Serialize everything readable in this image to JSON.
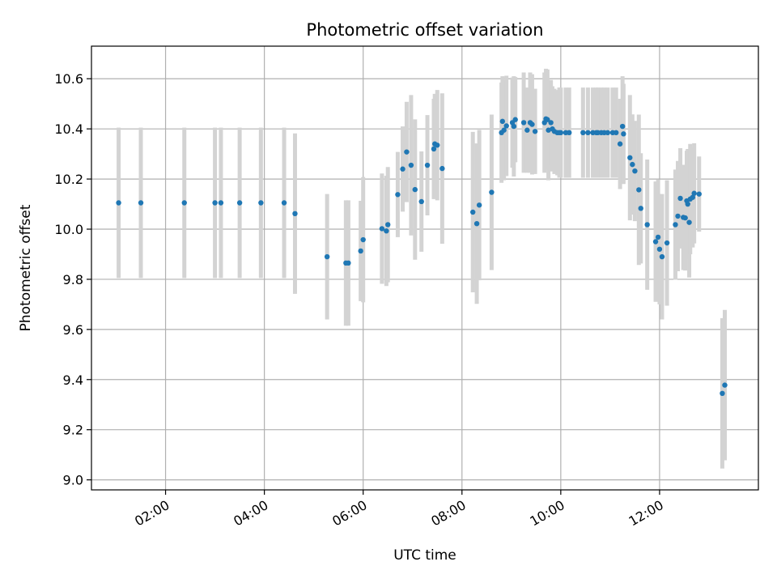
{
  "chart_data": {
    "type": "scatter",
    "title": "Photometric offset variation",
    "xlabel": "UTC time",
    "ylabel": "Photometric offset",
    "x_unit": "hours UTC",
    "xlim": [
      0.5,
      14.0
    ],
    "ylim": [
      8.96,
      10.73
    ],
    "x_ticks": [
      2,
      4,
      6,
      8,
      10,
      12
    ],
    "x_tick_labels": [
      "02:00",
      "04:00",
      "06:00",
      "08:00",
      "10:00",
      "12:00"
    ],
    "y_ticks": [
      9.0,
      9.2,
      9.4,
      9.6,
      9.8,
      10.0,
      10.2,
      10.4,
      10.6
    ],
    "y_tick_labels": [
      "9.0",
      "9.2",
      "9.4",
      "9.6",
      "9.8",
      "10.0",
      "10.2",
      "10.4",
      "10.6"
    ],
    "grid": true,
    "colors": {
      "points": "#1f77b4",
      "errorbars": "#d3d3d3",
      "grid": "#b0b0b0"
    },
    "points": [
      [
        1.05,
        10.105,
        0.3
      ],
      [
        1.5,
        10.105,
        0.3
      ],
      [
        2.38,
        10.105,
        0.3
      ],
      [
        3.0,
        10.105,
        0.3
      ],
      [
        3.12,
        10.105,
        0.3
      ],
      [
        3.5,
        10.105,
        0.3
      ],
      [
        3.93,
        10.105,
        0.3
      ],
      [
        4.4,
        10.105,
        0.3
      ],
      [
        4.62,
        10.062,
        0.32
      ],
      [
        5.27,
        9.89,
        0.25
      ],
      [
        5.65,
        9.865,
        0.25
      ],
      [
        5.7,
        9.865,
        0.25
      ],
      [
        5.95,
        9.913,
        0.2
      ],
      [
        6.0,
        9.958,
        0.25
      ],
      [
        6.38,
        10.002,
        0.22
      ],
      [
        6.47,
        9.993,
        0.22
      ],
      [
        6.5,
        10.018,
        0.23
      ],
      [
        6.7,
        10.138,
        0.17
      ],
      [
        6.8,
        10.24,
        0.17
      ],
      [
        6.88,
        10.308,
        0.2
      ],
      [
        6.97,
        10.255,
        0.28
      ],
      [
        7.05,
        10.158,
        0.28
      ],
      [
        7.18,
        10.11,
        0.2
      ],
      [
        7.3,
        10.255,
        0.2
      ],
      [
        7.43,
        10.32,
        0.2
      ],
      [
        7.45,
        10.34,
        0.2
      ],
      [
        7.5,
        10.335,
        0.22
      ],
      [
        7.6,
        10.242,
        0.3
      ],
      [
        8.22,
        10.068,
        0.32
      ],
      [
        8.3,
        10.022,
        0.32
      ],
      [
        8.35,
        10.096,
        0.3
      ],
      [
        8.6,
        10.147,
        0.31
      ],
      [
        8.8,
        10.385,
        0.2
      ],
      [
        8.82,
        10.43,
        0.18
      ],
      [
        8.85,
        10.395,
        0.2
      ],
      [
        8.9,
        10.412,
        0.2
      ],
      [
        9.02,
        10.425,
        0.18
      ],
      [
        9.05,
        10.41,
        0.2
      ],
      [
        9.08,
        10.437,
        0.17
      ],
      [
        9.25,
        10.425,
        0.2
      ],
      [
        9.32,
        10.395,
        0.17
      ],
      [
        9.38,
        10.425,
        0.2
      ],
      [
        9.42,
        10.418,
        0.2
      ],
      [
        9.48,
        10.39,
        0.17
      ],
      [
        9.67,
        10.425,
        0.2
      ],
      [
        9.7,
        10.44,
        0.2
      ],
      [
        9.73,
        10.437,
        0.2
      ],
      [
        9.75,
        10.395,
        0.2
      ],
      [
        9.8,
        10.425,
        0.17
      ],
      [
        9.83,
        10.4,
        0.17
      ],
      [
        9.87,
        10.39,
        0.17
      ],
      [
        9.93,
        10.385,
        0.17
      ],
      [
        9.97,
        10.385,
        0.18
      ],
      [
        10.0,
        10.385,
        0.18
      ],
      [
        10.1,
        10.385,
        0.18
      ],
      [
        10.17,
        10.385,
        0.18
      ],
      [
        10.45,
        10.385,
        0.18
      ],
      [
        10.55,
        10.385,
        0.18
      ],
      [
        10.65,
        10.385,
        0.18
      ],
      [
        10.72,
        10.385,
        0.18
      ],
      [
        10.75,
        10.385,
        0.18
      ],
      [
        10.82,
        10.385,
        0.18
      ],
      [
        10.88,
        10.385,
        0.18
      ],
      [
        10.95,
        10.385,
        0.18
      ],
      [
        11.05,
        10.385,
        0.18
      ],
      [
        11.12,
        10.385,
        0.18
      ],
      [
        11.2,
        10.34,
        0.18
      ],
      [
        11.25,
        10.41,
        0.2
      ],
      [
        11.27,
        10.38,
        0.2
      ],
      [
        11.4,
        10.285,
        0.25
      ],
      [
        11.45,
        10.258,
        0.2
      ],
      [
        11.5,
        10.232,
        0.2
      ],
      [
        11.58,
        10.157,
        0.3
      ],
      [
        11.62,
        10.083,
        0.22
      ],
      [
        11.75,
        10.018,
        0.26
      ],
      [
        11.92,
        9.95,
        0.24
      ],
      [
        11.97,
        9.968,
        0.23
      ],
      [
        12.0,
        9.92,
        0.22
      ],
      [
        12.05,
        9.89,
        0.25
      ],
      [
        12.15,
        9.945,
        0.25
      ],
      [
        12.32,
        10.018,
        0.22
      ],
      [
        12.37,
        10.052,
        0.22
      ],
      [
        12.42,
        10.123,
        0.2
      ],
      [
        12.48,
        10.047,
        0.21
      ],
      [
        12.52,
        10.045,
        0.21
      ],
      [
        12.55,
        10.113,
        0.2
      ],
      [
        12.57,
        10.1,
        0.22
      ],
      [
        12.6,
        10.027,
        0.22
      ],
      [
        12.62,
        10.12,
        0.22
      ],
      [
        12.67,
        10.127,
        0.2
      ],
      [
        12.7,
        10.143,
        0.2
      ],
      [
        12.8,
        10.14,
        0.15
      ],
      [
        13.27,
        9.345,
        0.3
      ],
      [
        13.32,
        9.378,
        0.3
      ]
    ]
  }
}
